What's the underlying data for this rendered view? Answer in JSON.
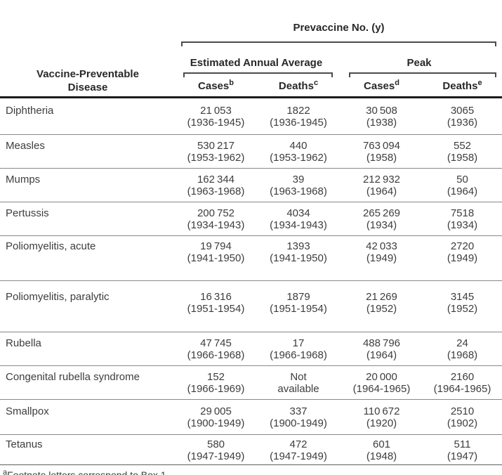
{
  "header": {
    "disease_col": "Vaccine-Preventable Disease",
    "prevaccine_group": "Prevaccine No. (y)",
    "avg_group": "Estimated Annual Average",
    "peak_group": "Peak",
    "cols": [
      {
        "label": "Cases",
        "sup": "b"
      },
      {
        "label": "Deaths",
        "sup": "c"
      },
      {
        "label": "Cases",
        "sup": "d"
      },
      {
        "label": "Deaths",
        "sup": "e"
      }
    ]
  },
  "rows": [
    {
      "disease": "Diphtheria",
      "avg_cases": {
        "value": "21 053",
        "years": "(1936-1945)"
      },
      "avg_deaths": {
        "value": "1822",
        "years": "(1936-1945)"
      },
      "peak_cases": {
        "value": "30 508",
        "years": "(1938)"
      },
      "peak_deaths": {
        "value": "3065",
        "years": "(1936)"
      }
    },
    {
      "disease": "Measles",
      "avg_cases": {
        "value": "530 217",
        "years": "(1953-1962)"
      },
      "avg_deaths": {
        "value": "440",
        "years": "(1953-1962)"
      },
      "peak_cases": {
        "value": "763 094",
        "years": "(1958)"
      },
      "peak_deaths": {
        "value": "552",
        "years": "(1958)"
      }
    },
    {
      "disease": "Mumps",
      "avg_cases": {
        "value": "162 344",
        "years": "(1963-1968)"
      },
      "avg_deaths": {
        "value": "39",
        "years": "(1963-1968)"
      },
      "peak_cases": {
        "value": "212 932",
        "years": "(1964)"
      },
      "peak_deaths": {
        "value": "50",
        "years": "(1964)"
      }
    },
    {
      "disease": "Pertussis",
      "avg_cases": {
        "value": "200 752",
        "years": "(1934-1943)"
      },
      "avg_deaths": {
        "value": "4034",
        "years": "(1934-1943)"
      },
      "peak_cases": {
        "value": "265 269",
        "years": "(1934)"
      },
      "peak_deaths": {
        "value": "7518",
        "years": "(1934)"
      }
    },
    {
      "disease": "Poliomyelitis, acute",
      "avg_cases": {
        "value": "19 794",
        "years": "(1941-1950)"
      },
      "avg_deaths": {
        "value": "1393",
        "years": "(1941-1950)"
      },
      "peak_cases": {
        "value": "42 033",
        "years": "(1949)"
      },
      "peak_deaths": {
        "value": "2720",
        "years": "(1949)"
      }
    },
    {
      "disease": "Poliomyelitis, paralytic",
      "avg_cases": {
        "value": "16 316",
        "years": "(1951-1954)"
      },
      "avg_deaths": {
        "value": "1879",
        "years": "(1951-1954)"
      },
      "peak_cases": {
        "value": "21 269",
        "years": "(1952)"
      },
      "peak_deaths": {
        "value": "3145",
        "years": "(1952)"
      }
    },
    {
      "disease": "Rubella",
      "avg_cases": {
        "value": "47 745",
        "years": "(1966-1968)"
      },
      "avg_deaths": {
        "value": "17",
        "years": "(1966-1968)"
      },
      "peak_cases": {
        "value": "488 796",
        "years": "(1964)"
      },
      "peak_deaths": {
        "value": "24",
        "years": "(1968)"
      }
    },
    {
      "disease": "Congenital rubella syndrome",
      "avg_cases": {
        "value": "152",
        "years": "(1966-1969)"
      },
      "avg_deaths": {
        "value": "Not",
        "years": "available"
      },
      "peak_cases": {
        "value": "20 000",
        "years": "(1964-1965)"
      },
      "peak_deaths": {
        "value": "2160",
        "years": "(1964-1965)"
      }
    },
    {
      "disease": "Smallpox",
      "avg_cases": {
        "value": "29 005",
        "years": "(1900-1949)"
      },
      "avg_deaths": {
        "value": "337",
        "years": "(1900-1949)"
      },
      "peak_cases": {
        "value": "110 672",
        "years": "(1920)"
      },
      "peak_deaths": {
        "value": "2510",
        "years": "(1902)"
      }
    },
    {
      "disease": "Tetanus",
      "avg_cases": {
        "value": "580",
        "years": "(1947-1949)"
      },
      "avg_deaths": {
        "value": "472",
        "years": "(1947-1949)"
      },
      "peak_cases": {
        "value": "601",
        "years": "(1948)"
      },
      "peak_deaths": {
        "value": "511",
        "years": "(1947)"
      }
    }
  ],
  "footnote": {
    "sup": "a",
    "text": "Footnote letters correspond to Box 1."
  }
}
